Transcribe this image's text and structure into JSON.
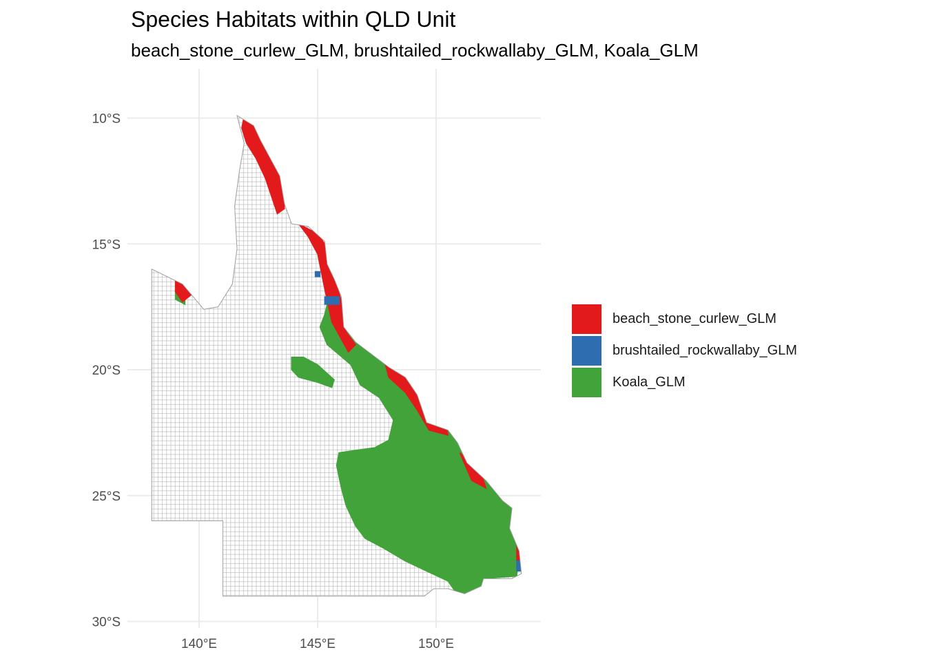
{
  "title": "Species Habitats within QLD Unit",
  "subtitle": "beach_stone_curlew_GLM, brushtailed_rockwallaby_GLM, Koala_GLM",
  "chart_data": {
    "type": "map",
    "title": "Species Habitats within QLD Unit",
    "subtitle": "beach_stone_curlew_GLM, brushtailed_rockwallaby_GLM, Koala_GLM",
    "x_axis": {
      "range": [
        137.3,
        154.6
      ],
      "ticks": [
        140,
        145,
        150
      ],
      "tick_labels": [
        "140°E",
        "145°E",
        "150°E"
      ]
    },
    "y_axis": {
      "range": [
        -30.1,
        -8.0
      ],
      "ticks": [
        -10,
        -15,
        -20,
        -25,
        -30
      ],
      "tick_labels": [
        "10°S",
        "15°S",
        "20°S",
        "25°S",
        "30°S"
      ]
    },
    "grid": true,
    "legend_position": "right",
    "cell_size_deg": 0.18,
    "base_color": "#ffffff",
    "base_stroke": "#b3b3b3",
    "series": [
      {
        "name": "beach_stone_curlew_GLM",
        "color": "#e31a1c"
      },
      {
        "name": "brushtailed_rockwallaby_GLM",
        "color": "#2e6eb0"
      },
      {
        "name": "Koala_GLM",
        "color": "#41a33a"
      }
    ],
    "state_outline": [
      [
        141.6,
        -9.9
      ],
      [
        142.3,
        -10.3
      ],
      [
        142.6,
        -10.9
      ],
      [
        143.0,
        -11.6
      ],
      [
        143.4,
        -12.3
      ],
      [
        143.6,
        -13.4
      ],
      [
        143.9,
        -14.2
      ],
      [
        144.6,
        -14.3
      ],
      [
        145.3,
        -14.9
      ],
      [
        145.4,
        -15.8
      ],
      [
        145.7,
        -16.4
      ],
      [
        146.0,
        -17.1
      ],
      [
        146.1,
        -18.3
      ],
      [
        146.6,
        -18.9
      ],
      [
        147.3,
        -19.4
      ],
      [
        148.0,
        -19.9
      ],
      [
        148.7,
        -20.3
      ],
      [
        149.2,
        -21.0
      ],
      [
        149.6,
        -22.1
      ],
      [
        150.5,
        -22.4
      ],
      [
        150.9,
        -22.9
      ],
      [
        151.3,
        -23.7
      ],
      [
        152.1,
        -24.4
      ],
      [
        152.8,
        -25.2
      ],
      [
        153.2,
        -25.5
      ],
      [
        153.1,
        -26.3
      ],
      [
        153.5,
        -27.2
      ],
      [
        153.6,
        -28.1
      ],
      [
        153.2,
        -28.3
      ],
      [
        152.0,
        -28.3
      ],
      [
        151.9,
        -28.6
      ],
      [
        151.2,
        -28.9
      ],
      [
        150.5,
        -28.7
      ],
      [
        149.9,
        -28.7
      ],
      [
        149.5,
        -29.0
      ],
      [
        141.0,
        -29.0
      ],
      [
        141.0,
        -26.0
      ],
      [
        138.0,
        -26.0
      ],
      [
        138.0,
        -16.0
      ],
      [
        139.3,
        -16.6
      ],
      [
        140.2,
        -17.6
      ],
      [
        140.8,
        -17.5
      ],
      [
        141.4,
        -16.6
      ],
      [
        141.6,
        -15.2
      ],
      [
        141.5,
        -13.5
      ],
      [
        141.7,
        -12.1
      ],
      [
        141.9,
        -11.0
      ]
    ],
    "regions": {
      "beach_stone_curlew_GLM": [
        [
          [
            141.9,
            -9.9
          ],
          [
            142.5,
            -10.2
          ],
          [
            143.0,
            -11.2
          ],
          [
            143.5,
            -12.2
          ],
          [
            143.6,
            -13.6
          ],
          [
            143.3,
            -13.8
          ],
          [
            142.8,
            -12.4
          ],
          [
            142.4,
            -11.6
          ],
          [
            142.0,
            -11.0
          ],
          [
            141.8,
            -10.4
          ]
        ],
        [
          [
            142.5,
            -9.3
          ],
          [
            143.3,
            -9.4
          ],
          [
            143.6,
            -9.9
          ],
          [
            142.9,
            -10.0
          ],
          [
            142.3,
            -9.8
          ]
        ],
        [
          [
            144.2,
            -14.2
          ],
          [
            145.0,
            -14.6
          ],
          [
            145.6,
            -15.4
          ],
          [
            145.8,
            -16.6
          ],
          [
            146.1,
            -17.6
          ],
          [
            146.2,
            -18.5
          ],
          [
            146.6,
            -19.0
          ],
          [
            146.3,
            -19.3
          ],
          [
            145.6,
            -18.1
          ],
          [
            145.3,
            -16.8
          ],
          [
            145.0,
            -15.4
          ],
          [
            144.6,
            -14.7
          ]
        ],
        [
          [
            147.8,
            -19.6
          ],
          [
            148.4,
            -19.9
          ],
          [
            149.1,
            -20.3
          ],
          [
            149.5,
            -21.2
          ],
          [
            149.9,
            -21.8
          ],
          [
            150.4,
            -22.1
          ],
          [
            150.5,
            -22.6
          ],
          [
            149.7,
            -22.4
          ],
          [
            149.2,
            -21.6
          ],
          [
            148.7,
            -20.9
          ],
          [
            148.0,
            -20.3
          ]
        ],
        [
          [
            139.0,
            -16.3
          ],
          [
            139.7,
            -16.4
          ],
          [
            139.7,
            -17.0
          ],
          [
            139.3,
            -17.3
          ],
          [
            139.0,
            -16.9
          ]
        ],
        [
          [
            151.0,
            -23.3
          ],
          [
            151.9,
            -24.1
          ],
          [
            152.1,
            -24.7
          ],
          [
            151.5,
            -24.4
          ]
        ],
        [
          [
            153.4,
            -26.9
          ],
          [
            153.6,
            -27.0
          ],
          [
            153.6,
            -27.8
          ],
          [
            153.4,
            -27.6
          ]
        ]
      ],
      "brushtailed_rockwallaby_GLM": [
        [
          [
            145.3,
            -17.1
          ],
          [
            145.9,
            -17.1
          ],
          [
            145.9,
            -17.4
          ],
          [
            145.3,
            -17.4
          ]
        ],
        [
          [
            144.9,
            -16.1
          ],
          [
            145.1,
            -16.1
          ],
          [
            145.1,
            -16.3
          ],
          [
            144.9,
            -16.3
          ]
        ],
        [
          [
            153.4,
            -27.6
          ],
          [
            153.6,
            -27.6
          ],
          [
            153.6,
            -28.0
          ],
          [
            153.4,
            -28.0
          ]
        ]
      ],
      "Koala_GLM": [
        [
          [
            145.4,
            -17.4
          ],
          [
            145.9,
            -17.5
          ],
          [
            146.0,
            -18.2
          ],
          [
            146.6,
            -18.9
          ],
          [
            147.3,
            -19.4
          ],
          [
            148.0,
            -19.8
          ],
          [
            148.7,
            -20.3
          ],
          [
            149.2,
            -21.0
          ],
          [
            149.6,
            -22.1
          ],
          [
            150.5,
            -22.4
          ],
          [
            150.9,
            -22.9
          ],
          [
            151.3,
            -23.7
          ],
          [
            152.1,
            -24.4
          ],
          [
            152.8,
            -25.2
          ],
          [
            153.2,
            -25.5
          ],
          [
            153.1,
            -26.3
          ],
          [
            153.5,
            -27.2
          ],
          [
            153.4,
            -28.2
          ],
          [
            152.0,
            -28.3
          ],
          [
            151.9,
            -28.6
          ],
          [
            151.2,
            -28.9
          ],
          [
            150.8,
            -28.8
          ],
          [
            150.5,
            -28.4
          ],
          [
            149.6,
            -28.0
          ],
          [
            148.7,
            -27.6
          ],
          [
            147.8,
            -27.1
          ],
          [
            147.0,
            -26.7
          ],
          [
            146.6,
            -26.2
          ],
          [
            146.2,
            -25.4
          ],
          [
            146.0,
            -24.7
          ],
          [
            145.8,
            -23.8
          ],
          [
            145.9,
            -23.3
          ],
          [
            146.6,
            -23.2
          ],
          [
            147.4,
            -23.1
          ],
          [
            148.0,
            -22.8
          ],
          [
            148.2,
            -22.0
          ],
          [
            147.6,
            -21.1
          ],
          [
            146.8,
            -20.6
          ],
          [
            146.4,
            -19.8
          ],
          [
            145.9,
            -19.4
          ],
          [
            145.4,
            -19.0
          ],
          [
            145.1,
            -18.3
          ],
          [
            145.3,
            -17.8
          ]
        ],
        [
          [
            143.9,
            -19.5
          ],
          [
            144.4,
            -19.5
          ],
          [
            145.0,
            -19.8
          ],
          [
            145.7,
            -20.4
          ],
          [
            145.6,
            -20.7
          ],
          [
            145.0,
            -20.5
          ],
          [
            144.2,
            -20.3
          ],
          [
            143.9,
            -20.0
          ]
        ],
        [
          [
            139.0,
            -16.8
          ],
          [
            139.4,
            -16.8
          ],
          [
            139.4,
            -17.4
          ],
          [
            139.0,
            -17.2
          ]
        ]
      ]
    }
  }
}
